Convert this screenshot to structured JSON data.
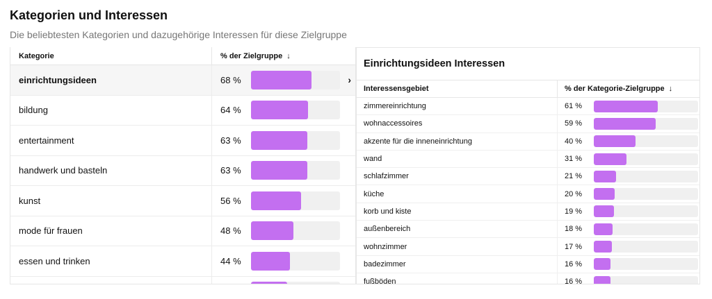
{
  "header": {
    "title": "Kategorien und Interessen",
    "subtitle": "Die beliebtesten Kategorien und dazugehörige Interessen für diese Zielgruppe"
  },
  "colors": {
    "bar_fill": "#c36ff0",
    "bar_track": "#f0f0f0",
    "selected_row": "#f6f6f6"
  },
  "icons": {
    "sort": "arrow-down-icon",
    "open_detail": "chevron-right-icon"
  },
  "categories_table": {
    "col_category": "Kategorie",
    "col_share": "% der Zielgruppe",
    "sort_icon": "↓",
    "chevron": "›",
    "rows": [
      {
        "label": "einrichtungsideen",
        "pct_text": "68 %",
        "value": 68,
        "selected": true
      },
      {
        "label": "bildung",
        "pct_text": "64 %",
        "value": 64
      },
      {
        "label": "entertainment",
        "pct_text": "63 %",
        "value": 63
      },
      {
        "label": "handwerk und basteln",
        "pct_text": "63 %",
        "value": 63
      },
      {
        "label": "kunst",
        "pct_text": "56 %",
        "value": 56
      },
      {
        "label": "mode für frauen",
        "pct_text": "48 %",
        "value": 48
      },
      {
        "label": "essen und trinken",
        "pct_text": "44 %",
        "value": 44
      },
      {
        "label": "",
        "pct_text": "",
        "value": 41
      }
    ]
  },
  "interests_table": {
    "title": "Einrichtungsideen Interessen",
    "col_interest": "Interessensgebiet",
    "col_share": "% der Kategorie-Zielgruppe",
    "sort_icon": "↓",
    "rows": [
      {
        "label": "zimmereinrichtung",
        "pct_text": "61 %",
        "value": 61
      },
      {
        "label": "wohnaccessoires",
        "pct_text": "59 %",
        "value": 59
      },
      {
        "label": "akzente für die inneneinrichtung",
        "pct_text": "40 %",
        "value": 40
      },
      {
        "label": "wand",
        "pct_text": "31 %",
        "value": 31
      },
      {
        "label": "schlafzimmer",
        "pct_text": "21 %",
        "value": 21
      },
      {
        "label": "küche",
        "pct_text": "20 %",
        "value": 20
      },
      {
        "label": "korb und kiste",
        "pct_text": "19 %",
        "value": 19
      },
      {
        "label": "außenbereich",
        "pct_text": "18 %",
        "value": 18
      },
      {
        "label": "wohnzimmer",
        "pct_text": "17 %",
        "value": 17
      },
      {
        "label": "badezimmer",
        "pct_text": "16 %",
        "value": 16
      },
      {
        "label": "fußböden",
        "pct_text": "16 %",
        "value": 16
      }
    ]
  }
}
